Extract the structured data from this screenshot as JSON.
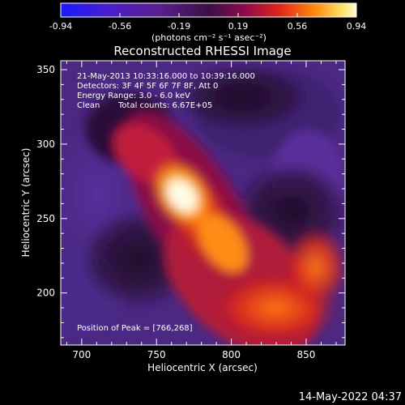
{
  "colorbar": {
    "ticks": [
      "-0.94",
      "-0.56",
      "-0.19",
      "0.19",
      "0.56",
      "0.94"
    ],
    "units": "(photons cm⁻² s⁻¹ asec⁻²)"
  },
  "title": "Reconstructed RHESSI Image",
  "annotations": {
    "time_range": "21-May-2013 10:33:16.000 to 10:39:16.000",
    "detectors": "Detectors: 3F 4F 5F 6F 7F 8F, Att 0",
    "energy": "Energy Range: 3.0 - 6.0 keV",
    "method": "Clean",
    "counts": "Total counts: 6.67E+05",
    "peak": "Position of Peak = [766,268]"
  },
  "axes": {
    "xlabel": "Heliocentric X (arcsec)",
    "ylabel": "Heliocentric Y (arcsec)",
    "xticks": [
      "700",
      "750",
      "800",
      "850"
    ],
    "yticks": [
      "200",
      "250",
      "300",
      "350"
    ]
  },
  "footer": {
    "date": "14-May-2022 04:37"
  },
  "colors": {
    "background": "#000000",
    "text": "#ffffff"
  }
}
